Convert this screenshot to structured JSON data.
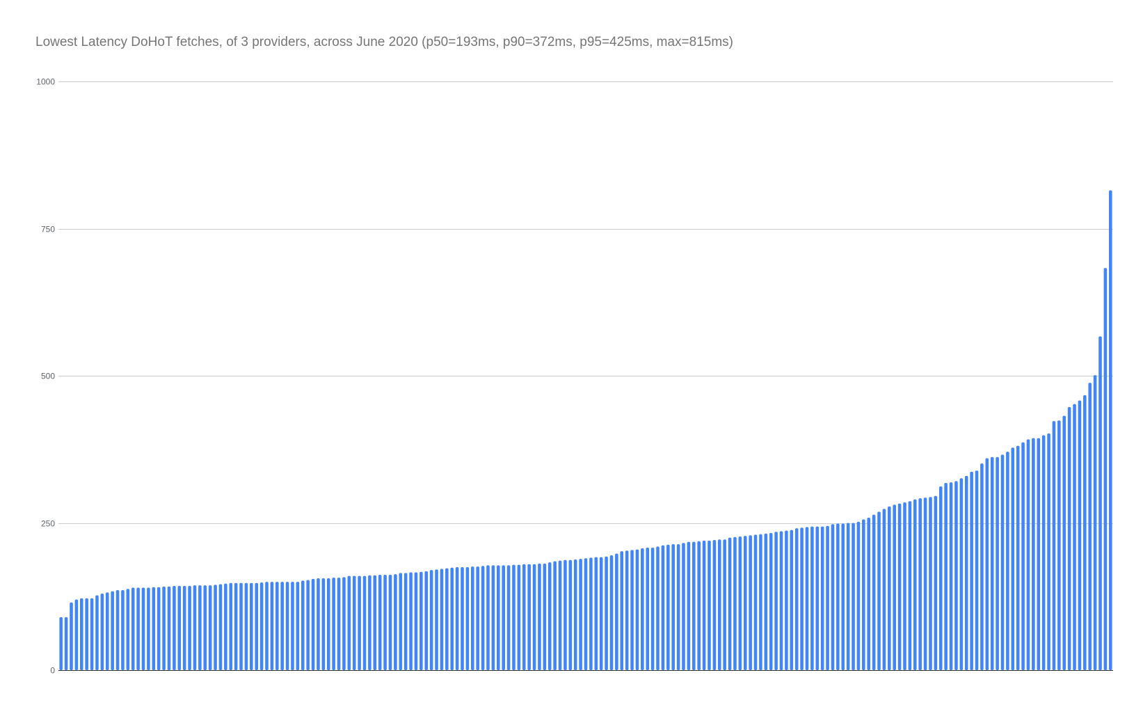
{
  "chart_data": {
    "type": "bar",
    "title": "Lowest Latency DoHoT fetches, of 3 providers, across June 2020 (p50=193ms, p90=372ms, p95=425ms, max=815ms)",
    "xlabel": "",
    "ylabel": "",
    "ylim": [
      0,
      1000
    ],
    "yticks": [
      0,
      250,
      500,
      750,
      1000
    ],
    "grid": true,
    "legend": "none",
    "color": "#4285f4",
    "values": [
      90,
      90,
      115,
      120,
      122,
      122,
      122,
      127,
      130,
      132,
      134,
      136,
      136,
      138,
      140,
      140,
      140,
      140,
      141,
      141,
      142,
      142,
      143,
      143,
      143,
      143,
      144,
      144,
      144,
      144,
      145,
      146,
      147,
      148,
      148,
      148,
      148,
      148,
      148,
      149,
      150,
      150,
      150,
      150,
      150,
      150,
      150,
      152,
      153,
      155,
      156,
      156,
      156,
      157,
      157,
      158,
      160,
      160,
      160,
      160,
      161,
      161,
      162,
      162,
      162,
      163,
      165,
      165,
      166,
      166,
      167,
      168,
      170,
      171,
      172,
      173,
      174,
      175,
      175,
      175,
      176,
      176,
      177,
      178,
      178,
      178,
      178,
      178,
      179,
      179,
      180,
      180,
      180,
      181,
      181,
      183,
      185,
      186,
      187,
      187,
      188,
      189,
      190,
      191,
      192,
      192,
      193,
      195,
      198,
      202,
      203,
      204,
      205,
      207,
      208,
      208,
      210,
      212,
      213,
      214,
      214,
      216,
      218,
      218,
      219,
      220,
      220,
      221,
      222,
      222,
      225,
      226,
      227,
      228,
      229,
      230,
      231,
      232,
      233,
      235,
      236,
      237,
      238,
      241,
      242,
      243,
      244,
      244,
      244,
      245,
      248,
      249,
      249,
      250,
      250,
      252,
      256,
      259,
      264,
      269,
      274,
      278,
      281,
      283,
      285,
      287,
      290,
      292,
      293,
      294,
      296,
      312,
      318,
      319,
      321,
      326,
      330,
      337,
      339,
      351,
      360,
      362,
      362,
      366,
      371,
      378,
      381,
      387,
      392,
      394,
      394,
      399,
      402,
      423,
      424,
      432,
      447,
      452,
      458,
      467,
      488,
      501,
      567,
      683,
      815
    ]
  }
}
